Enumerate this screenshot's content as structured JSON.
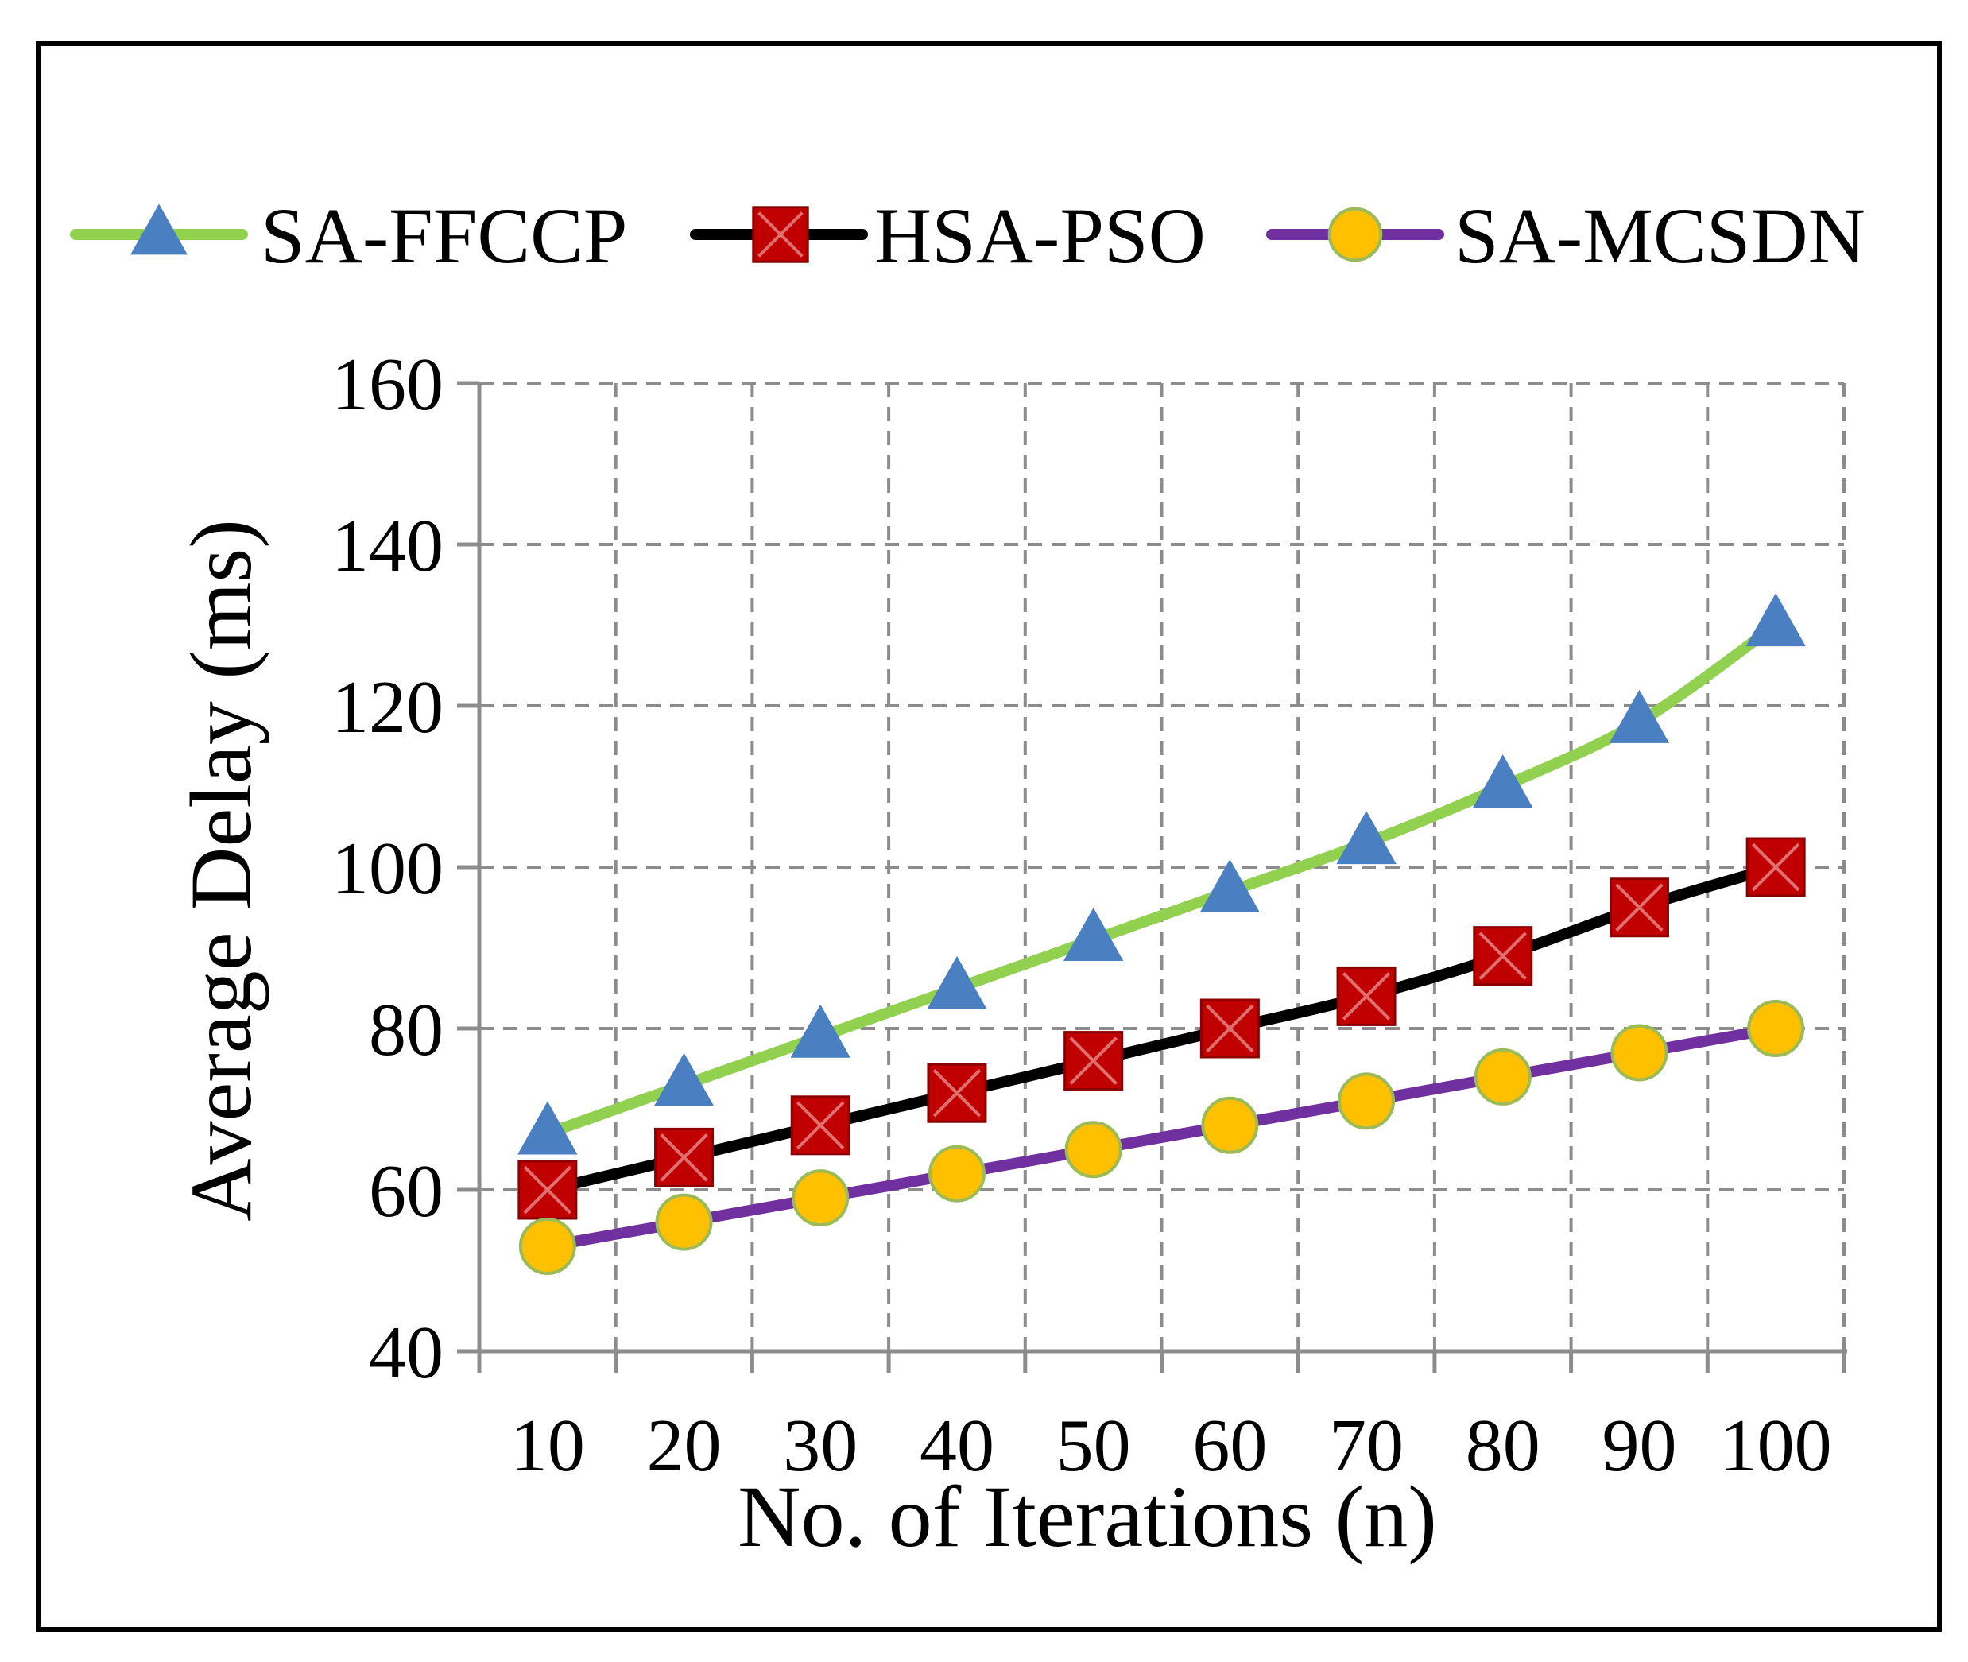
{
  "chart_data": {
    "type": "line",
    "title": "",
    "xlabel": "No. of Iterations (n)",
    "ylabel": "Average Delay (ms)",
    "categories": [
      "10",
      "20",
      "30",
      "40",
      "50",
      "60",
      "70",
      "80",
      "90",
      "100"
    ],
    "x": [
      10,
      20,
      30,
      40,
      50,
      60,
      70,
      80,
      90,
      100
    ],
    "ylim": [
      40,
      160
    ],
    "yticks": [
      40,
      60,
      80,
      100,
      120,
      140,
      160
    ],
    "grid": true,
    "legend_position": "top",
    "series": [
      {
        "name": "SA-FFCCP",
        "values": [
          67,
          73,
          79,
          85,
          91,
          97,
          103,
          110,
          118,
          130
        ],
        "line_color": "#92d050",
        "marker": "triangle",
        "marker_fill": "#4a7fc1",
        "marker_stroke": "#4a7fc1"
      },
      {
        "name": "HSA-PSO",
        "values": [
          60,
          64,
          68,
          72,
          76,
          80,
          84,
          89,
          95,
          100
        ],
        "line_color": "#000000",
        "marker": "square-x",
        "marker_fill": "#c00000",
        "marker_stroke": "#8b0000"
      },
      {
        "name": "SA-MCSDN",
        "values": [
          53,
          56,
          59,
          62,
          65,
          68,
          71,
          74,
          77,
          80
        ],
        "line_color": "#7030a0",
        "marker": "circle",
        "marker_fill": "#ffc000",
        "marker_stroke": "#9bbb59"
      }
    ]
  }
}
